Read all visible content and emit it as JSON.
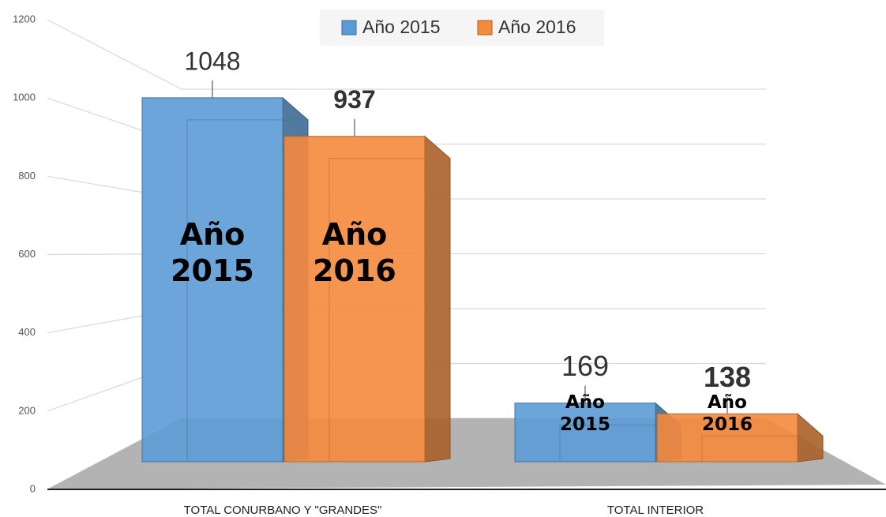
{
  "chart_data": {
    "type": "bar3d",
    "categories": [
      "TOTAL CONURBANO Y \"GRANDES\"",
      "TOTAL INTERIOR"
    ],
    "series": [
      {
        "name": "Año 2015",
        "color": "#5b9bd5",
        "values": [
          1048,
          169
        ]
      },
      {
        "name": "Año 2016",
        "color": "#f58a3d",
        "values": [
          937,
          138
        ]
      }
    ],
    "ylim": [
      0,
      1200
    ],
    "yticks": [
      0,
      200,
      400,
      600,
      800,
      1000,
      1200
    ],
    "grid": true,
    "legend": "top"
  }
}
